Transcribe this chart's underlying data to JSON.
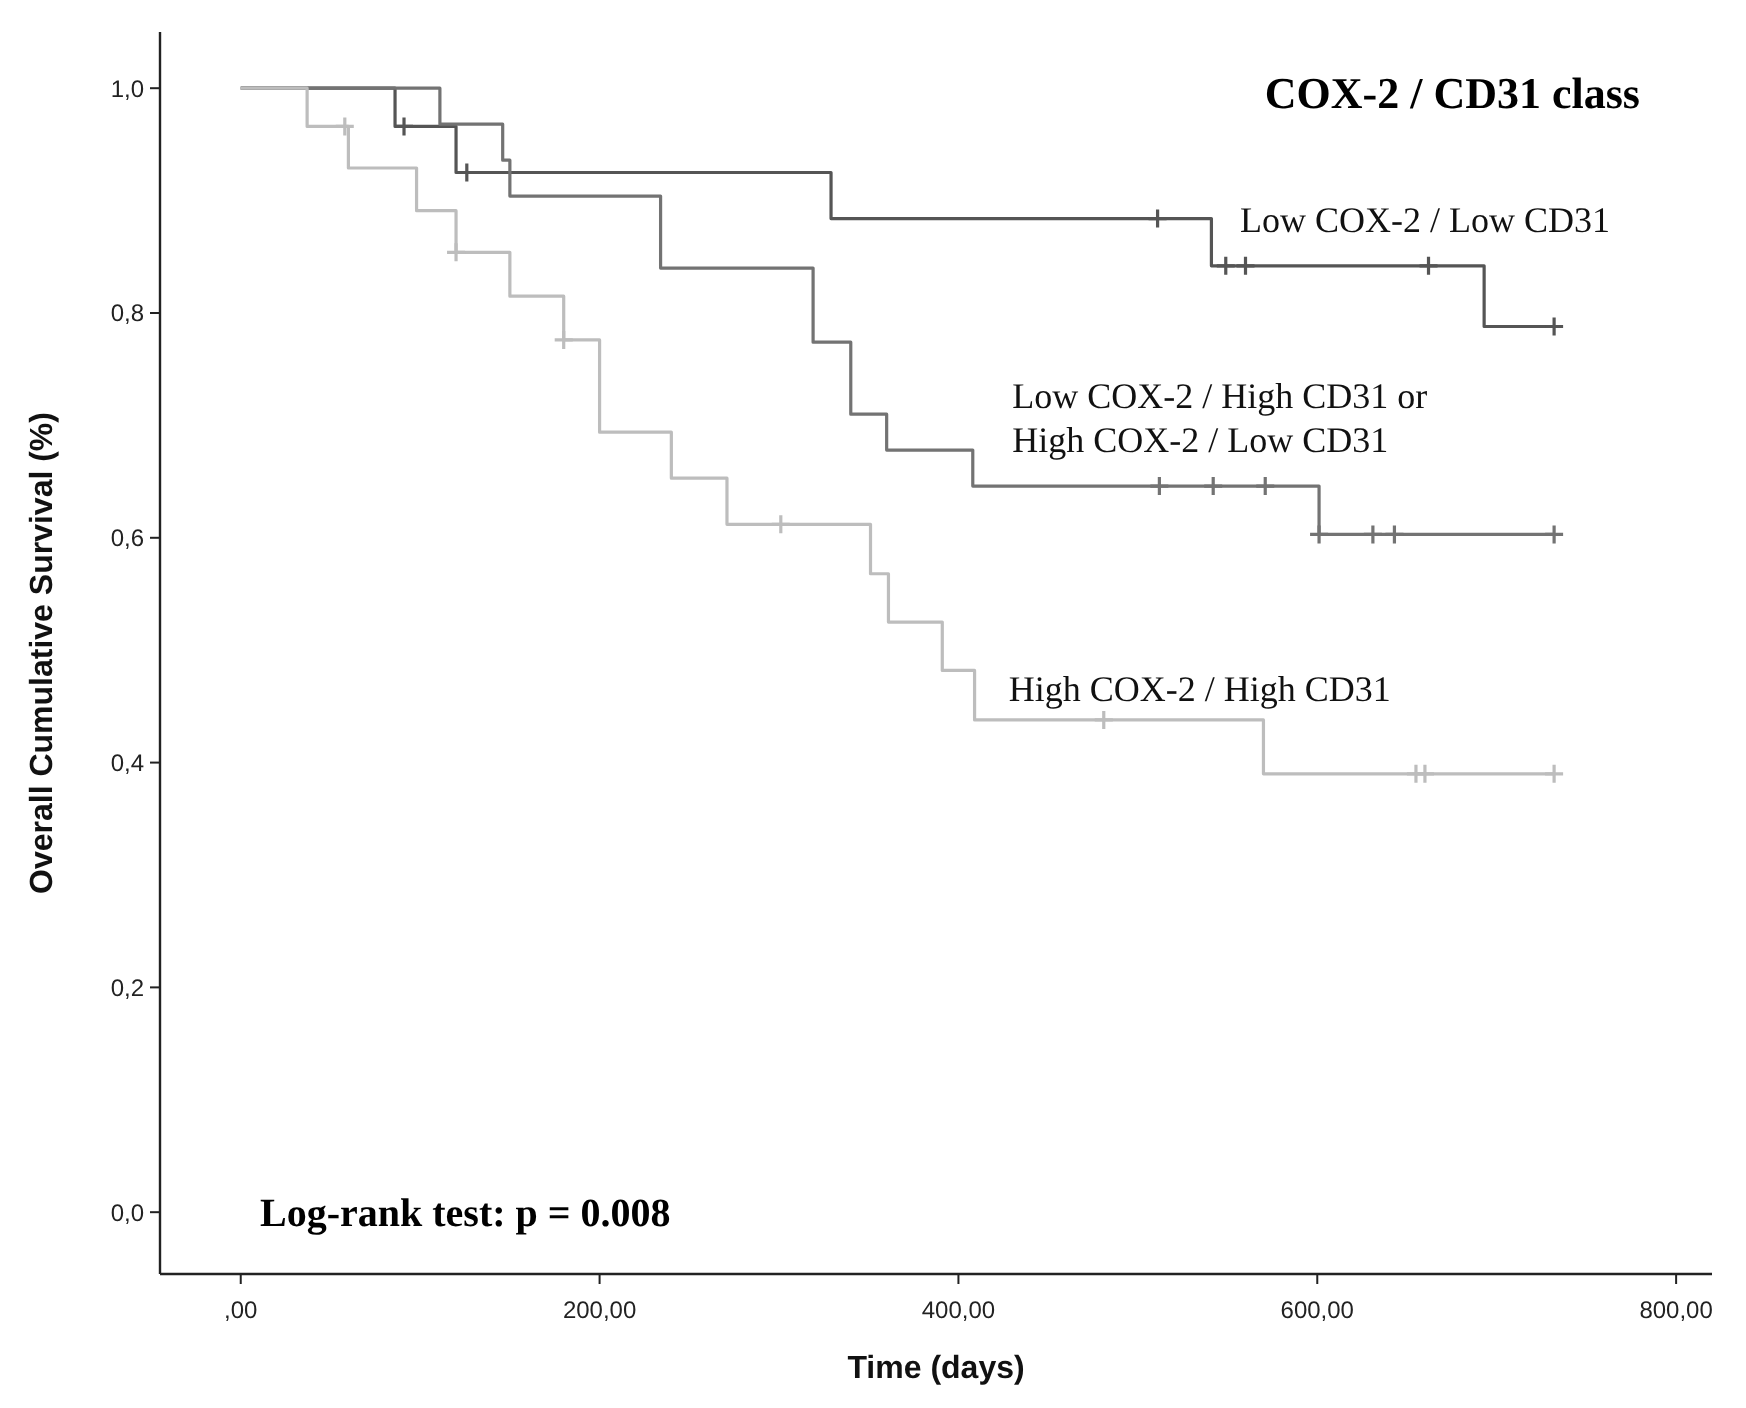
{
  "chart_data": {
    "type": "step",
    "title": "COX-2 / CD31 class",
    "xlabel": "Time (days)",
    "ylabel": "Overall Cumulative Survival (%)",
    "annotations": [
      "Log-rank test: p = 0.008"
    ],
    "xlim": [
      -45,
      820
    ],
    "ylim": [
      -0.055,
      1.05
    ],
    "xticks": [
      {
        "value": 0,
        "label": ",00"
      },
      {
        "value": 200,
        "label": "200,00"
      },
      {
        "value": 400,
        "label": "400,00"
      },
      {
        "value": 600,
        "label": "600,00"
      },
      {
        "value": 800,
        "label": "800,00"
      }
    ],
    "yticks": [
      {
        "value": 0,
        "label": "0,0"
      },
      {
        "value": 0.2,
        "label": "0,2"
      },
      {
        "value": 0.4,
        "label": "0,4"
      },
      {
        "value": 0.6,
        "label": "0,6"
      },
      {
        "value": 0.8,
        "label": "0,8"
      },
      {
        "value": 1.0,
        "label": "1,0"
      }
    ],
    "grid": false,
    "legend": false,
    "line_style": "solid",
    "series": [
      {
        "name": "Low COX-2 / Low CD31",
        "marker": "none",
        "color": "#555555",
        "x": [
          0,
          86,
          120,
          329,
          541,
          693,
          732
        ],
        "values": [
          1.0,
          0.966,
          0.925,
          0.884,
          0.842,
          0.788,
          0.788
        ]
      },
      {
        "type": "scatter",
        "marker": "cross",
        "color": "#555555",
        "x": [
          91,
          126,
          511,
          549,
          560,
          662,
          732
        ],
        "values": [
          0.966,
          0.925,
          0.884,
          0.842,
          0.842,
          0.842,
          0.788
        ]
      },
      {
        "name": "Low COX-2 / High CD31 or High COX-2 / Low CD31",
        "marker": "none",
        "color": "#737373",
        "x": [
          0,
          111,
          146,
          150,
          234,
          319,
          340,
          360,
          408,
          601,
          732
        ],
        "values": [
          1.0,
          0.968,
          0.936,
          0.904,
          0.84,
          0.774,
          0.71,
          0.678,
          0.646,
          0.603,
          0.603
        ]
      },
      {
        "type": "scatter",
        "marker": "cross",
        "color": "#737373",
        "x": [
          512,
          542,
          571,
          601,
          631,
          643,
          732
        ],
        "values": [
          0.646,
          0.646,
          0.646,
          0.603,
          0.603,
          0.603,
          0.603
        ]
      },
      {
        "name": "High COX-2 / High CD31",
        "marker": "none",
        "color": "#bdbdbd",
        "x": [
          0,
          37,
          60,
          98,
          120,
          150,
          180,
          200,
          240,
          271,
          351,
          361,
          391,
          409,
          570,
          732
        ],
        "values": [
          1.0,
          0.966,
          0.929,
          0.891,
          0.854,
          0.815,
          0.776,
          0.694,
          0.653,
          0.612,
          0.568,
          0.525,
          0.482,
          0.438,
          0.39,
          0.39
        ]
      },
      {
        "type": "scatter",
        "marker": "cross",
        "color": "#bdbdbd",
        "x": [
          58,
          120,
          180,
          301,
          481,
          655,
          660,
          732
        ],
        "values": [
          0.966,
          0.854,
          0.776,
          0.612,
          0.438,
          0.39,
          0.39,
          0.39
        ]
      }
    ]
  }
}
